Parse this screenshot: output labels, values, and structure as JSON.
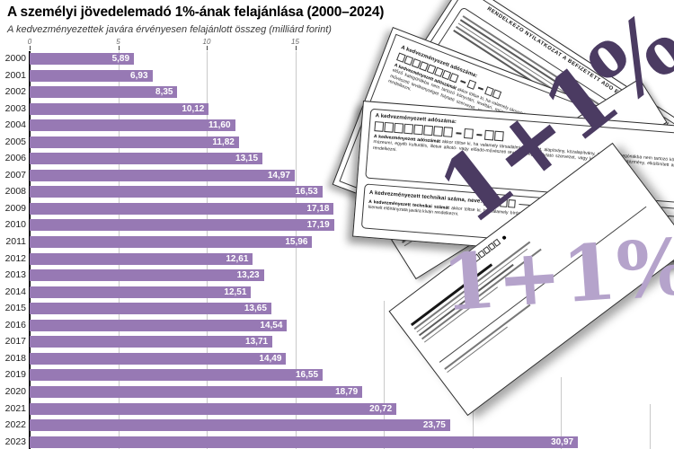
{
  "header": {
    "title": "A személyi jövedelemadó 1%-ának felajánlása (2000–2024)",
    "subtitle": "A kedvezményezettek javára érvényesen felajánlott összeg (milliárd forint)"
  },
  "chart_data": {
    "type": "bar",
    "orientation": "horizontal",
    "title": "A személyi jövedelemadó 1%-ának felajánlása (2000–2024)",
    "subtitle": "A kedvezményezettek javára érvényesen felajánlott összeg (milliárd forint)",
    "unit": "milliárd forint",
    "categories": [
      "2000",
      "2001",
      "2002",
      "2003",
      "2004",
      "2005",
      "2006",
      "2007",
      "2008",
      "2009",
      "2010",
      "2011",
      "2012",
      "2013",
      "2014",
      "2015",
      "2016",
      "2017",
      "2018",
      "2019",
      "2020",
      "2021",
      "2022",
      "2023"
    ],
    "values": [
      5.89,
      6.93,
      8.35,
      10.12,
      11.6,
      11.82,
      13.15,
      14.97,
      16.53,
      17.18,
      17.19,
      15.96,
      12.61,
      13.23,
      12.51,
      13.65,
      14.54,
      13.71,
      14.49,
      16.55,
      18.79,
      20.72,
      23.75,
      30.97
    ],
    "value_labels": [
      "5,89",
      "6,93",
      "8,35",
      "10,12",
      "11,60",
      "11,82",
      "13,15",
      "14,97",
      "16,53",
      "17,18",
      "17,19",
      "15,96",
      "12,61",
      "13,23",
      "12,51",
      "13,65",
      "14,54",
      "13,71",
      "14,49",
      "16,55",
      "18,79",
      "20,72",
      "23,75",
      "30,97"
    ],
    "xlim": [
      0,
      36.4
    ],
    "x_ticks": [
      0,
      5,
      10,
      15,
      20,
      25,
      30,
      35
    ],
    "x_tick_labels": [
      "0",
      "5",
      "10",
      "15",
      "",
      "",
      "",
      ""
    ],
    "grid": "vertical",
    "legend": "none",
    "bar_color": "#9779b4"
  },
  "illustration": {
    "big_label_top": "1+1%",
    "big_label_bottom": "1+1%",
    "colors": {
      "bar": "#9779b4",
      "big_label_top": "#4b3b62",
      "big_label_bottom": "#b5a3cb"
    },
    "form_back": {
      "heading": "RENDELKEZŐ NYILATKOZAT A BEFIZETETT ADÓ EGY SZÁZALÉKÁRÓL"
    },
    "form": {
      "tax_number_label": "A kedvezményezett adószáma:",
      "tax_lead": "A kedvezményezett adószámát",
      "tax_text": " akkor töltse ki, ha valamely társadalmi szervezet, alapítvány, közalapítvány, az előző kategóriákba nem tartozó könyvtári, levéltári, múzeumi, egyéb kulturális, illetve alkotó- vagy előadó-művészeti tevékenységet folytató szervezet, vagy külön nevesített intézmény, elkülönített alap javára kíván rendelkezni.",
      "technical_label": "A kedvezményezett technikai száma, neve:",
      "technical_lead": "A kedvezményezett technikai számát",
      "technical_text": " akkor töltse ki, ha valamely bíróság által bejegyzett, technikai számmal rendelkező egyház vagy a költségvetés valamely kiemelt előirányzata javára kíván rendelkezni."
    }
  }
}
